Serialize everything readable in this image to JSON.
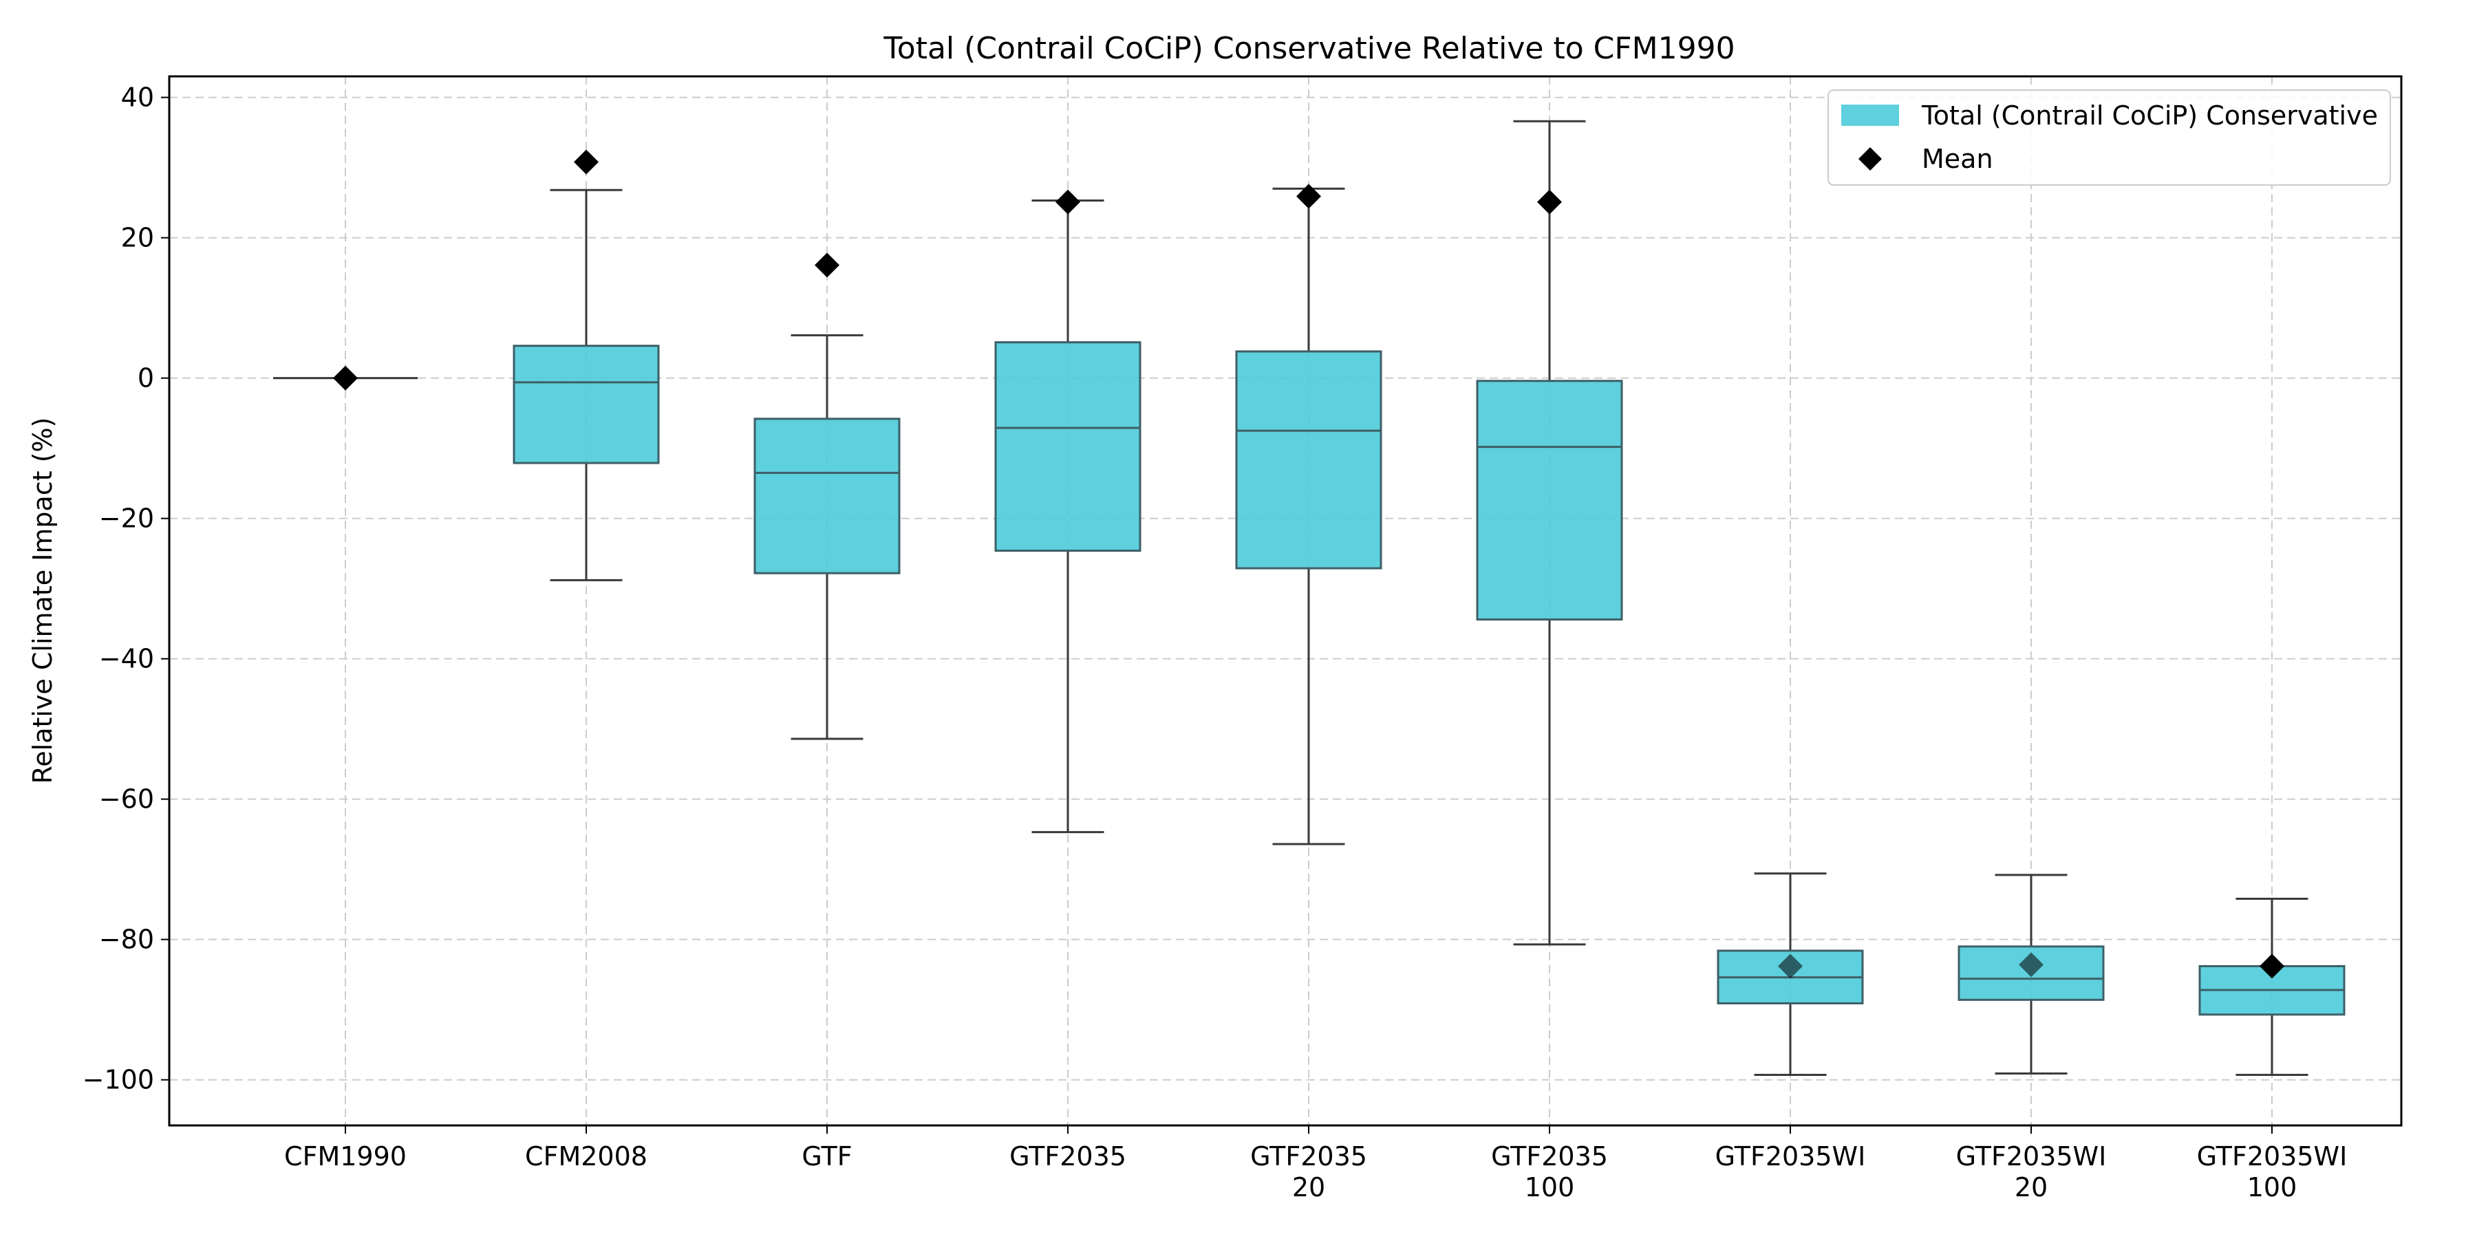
{
  "chart_data": {
    "type": "box",
    "title": "Total (Contrail CoCiP) Conservative Relative to CFM1990",
    "xlabel": "",
    "ylabel": "Relative Climate Impact (%)",
    "ylim": [
      -106.5,
      43
    ],
    "yticks": [
      40,
      20,
      0,
      -20,
      -40,
      -60,
      -80,
      -100
    ],
    "ytick_labels": [
      "40",
      "20",
      "0",
      "−20",
      "−40",
      "−60",
      "−80",
      "−100"
    ],
    "grid": true,
    "legend_position": "top-right",
    "colors": {
      "box_fill": "#4ecbd9",
      "box_edge": "#3d5f66",
      "whisker": "#3a3a3a",
      "mean_marker": "#000000",
      "grid": "#cccccc",
      "axes": "#000000"
    },
    "legend": [
      {
        "label": "Total (Contrail CoCiP) Conservative",
        "marker": "box"
      },
      {
        "label": "Mean",
        "marker": "diamond"
      }
    ],
    "categories": [
      {
        "label_lines": [
          "CFM1990"
        ],
        "whisker_low": 0,
        "q1": 0,
        "median": 0,
        "q3": 0,
        "whisker_high": 0,
        "mean": 0
      },
      {
        "label_lines": [
          "CFM2008"
        ],
        "whisker_low": -28.8,
        "q1": -12.1,
        "median": -0.6,
        "q3": 4.6,
        "whisker_high": 26.8,
        "mean": 30.8
      },
      {
        "label_lines": [
          "GTF"
        ],
        "whisker_low": -51.4,
        "q1": -27.8,
        "median": -13.5,
        "q3": -5.8,
        "whisker_high": 6.1,
        "mean": 16.1
      },
      {
        "label_lines": [
          "GTF2035"
        ],
        "whisker_low": -64.7,
        "q1": -24.6,
        "median": -7.1,
        "q3": 5.1,
        "whisker_high": 25.3,
        "mean": 25.1
      },
      {
        "label_lines": [
          "GTF2035",
          "20"
        ],
        "whisker_low": -66.4,
        "q1": -27.1,
        "median": -7.5,
        "q3": 3.8,
        "whisker_high": 27.0,
        "mean": 25.9
      },
      {
        "label_lines": [
          "GTF2035",
          "100"
        ],
        "whisker_low": -80.7,
        "q1": -34.4,
        "median": -9.8,
        "q3": -0.4,
        "whisker_high": 36.6,
        "mean": 25.1
      },
      {
        "label_lines": [
          "GTF2035WI"
        ],
        "whisker_low": -99.3,
        "q1": -89.1,
        "median": -85.4,
        "q3": -81.6,
        "whisker_high": -70.6,
        "mean": -83.8
      },
      {
        "label_lines": [
          "GTF2035WI",
          "20"
        ],
        "whisker_low": -99.1,
        "q1": -88.6,
        "median": -85.6,
        "q3": -81.0,
        "whisker_high": -70.8,
        "mean": -83.6
      },
      {
        "label_lines": [
          "GTF2035WI",
          "100"
        ],
        "whisker_low": -99.3,
        "q1": -90.7,
        "median": -87.2,
        "q3": -83.8,
        "whisker_high": -74.2,
        "mean": -83.8
      }
    ]
  }
}
